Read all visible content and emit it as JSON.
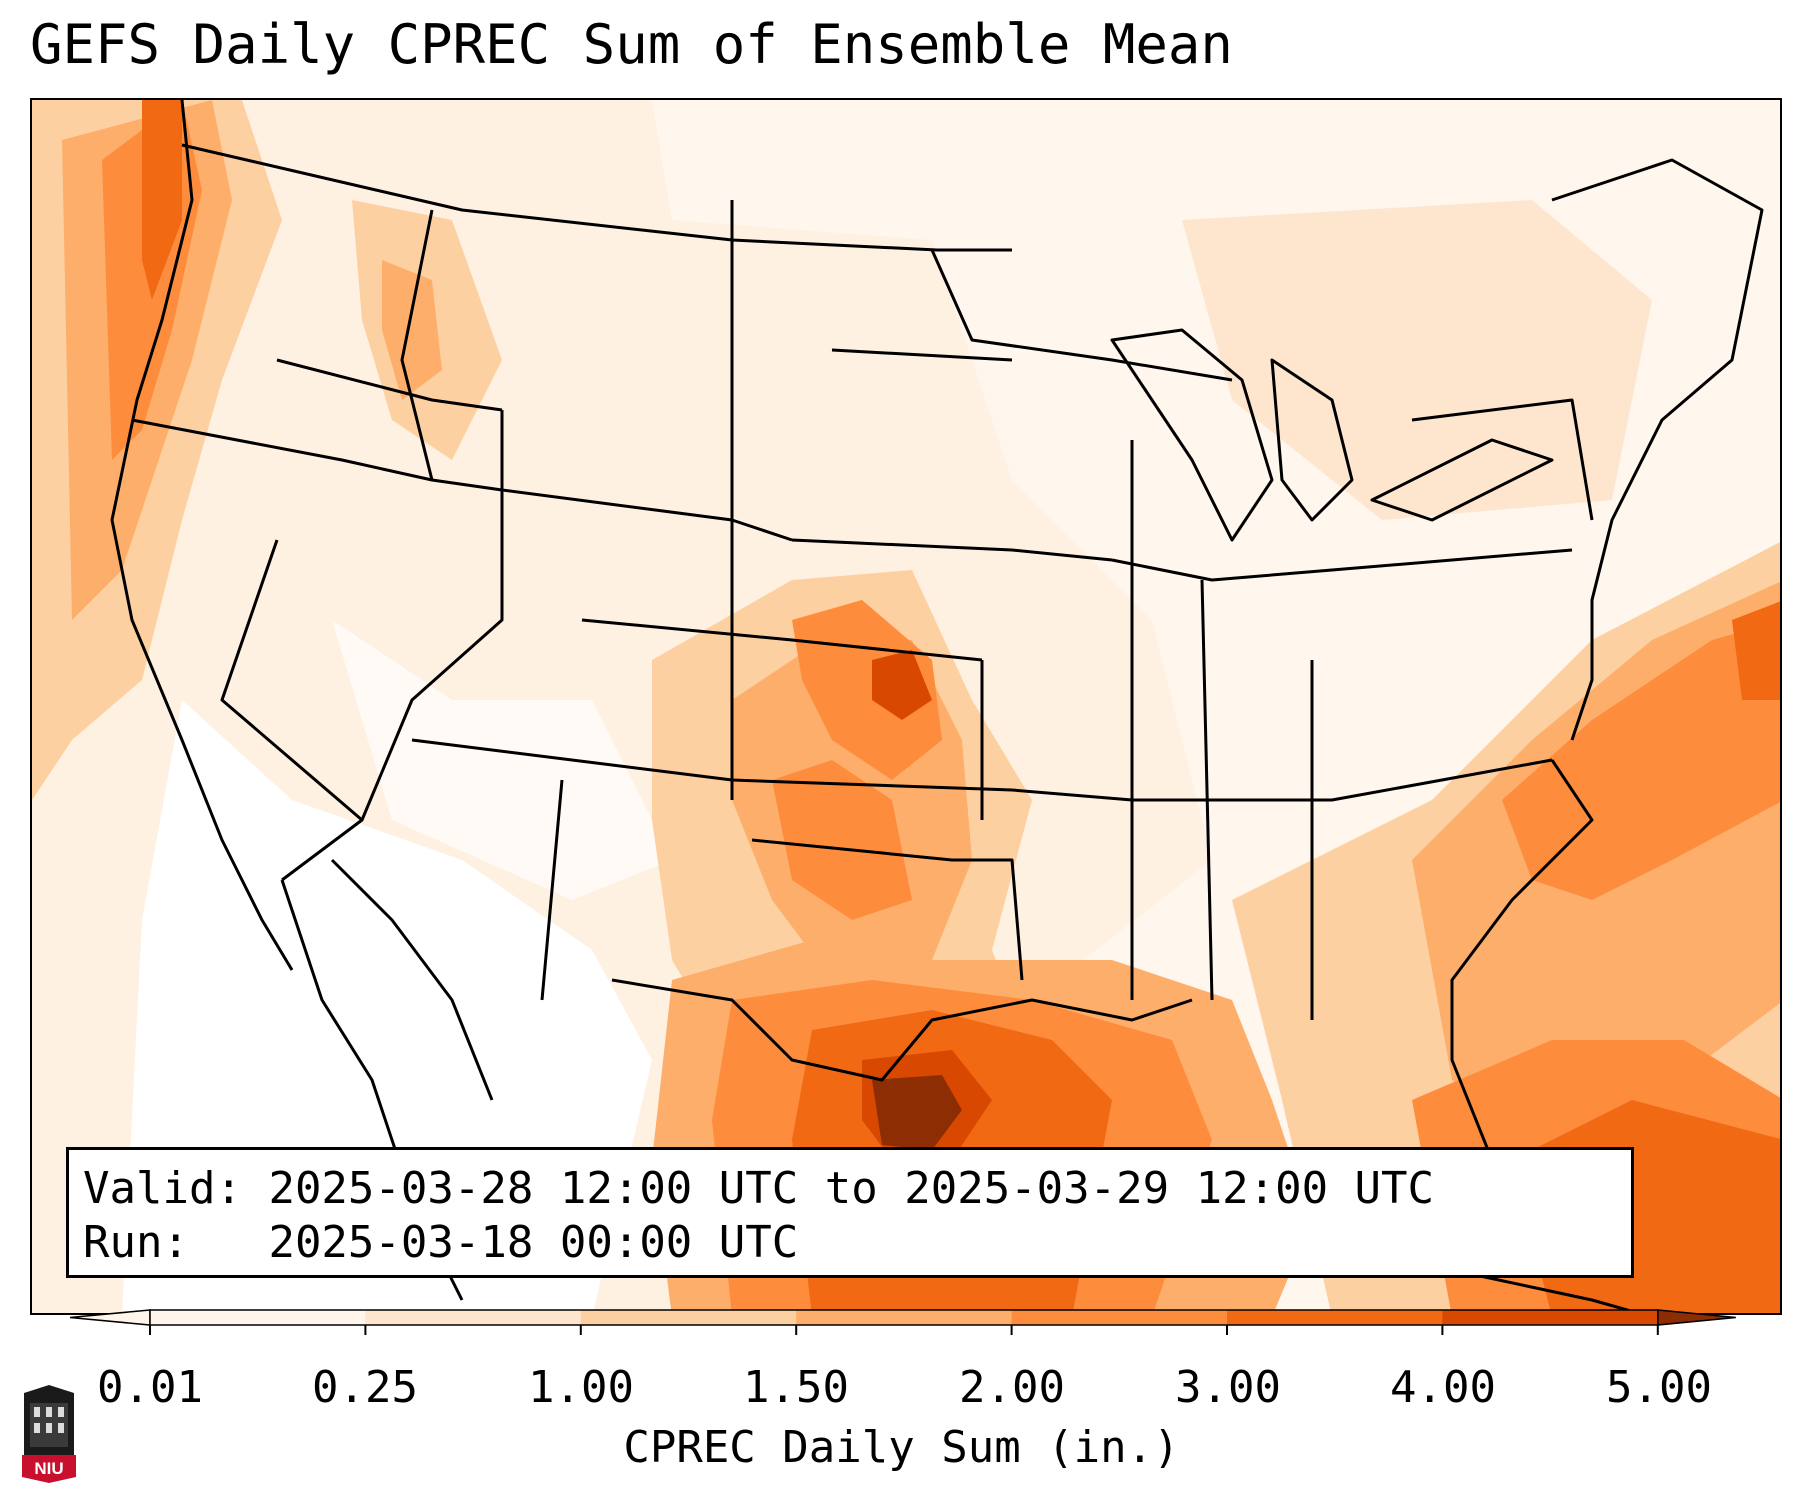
{
  "title": "GEFS Daily CPREC Sum of Ensemble Mean",
  "info": {
    "valid_label": "Valid:",
    "valid_value": "2025-03-28 12:00 UTC to 2025-03-29 12:00 UTC",
    "run_label": "Run:",
    "run_value": "2025-03-18 00:00 UTC"
  },
  "colorbar": {
    "label": "CPREC Daily Sum (in.)",
    "ticks": [
      "0.01",
      "0.25",
      "1.00",
      "1.50",
      "2.00",
      "3.00",
      "4.00",
      "5.00"
    ],
    "colors": [
      "#fff5eb",
      "#fee6ce",
      "#fdd0a2",
      "#fdae6b",
      "#fd8d3c",
      "#f16913",
      "#d94801",
      "#8c2d04"
    ],
    "extend": "both"
  },
  "logo": {
    "text": "NIU",
    "color": "#c8102e"
  },
  "map": {
    "projection": "Lambert Conformal",
    "region": "Continental United States",
    "background_color": "#fff6ee",
    "precip_areas": [
      {
        "name": "pacific-northwest-coast",
        "level": "1.50"
      },
      {
        "name": "southern-plains",
        "level": "1.50"
      },
      {
        "name": "missouri-ozarks",
        "level": "2.00"
      },
      {
        "name": "gulf-of-mexico-core",
        "level": "5.00"
      },
      {
        "name": "western-atlantic-band",
        "level": "2.00"
      },
      {
        "name": "caribbean",
        "level": "1.50"
      }
    ]
  }
}
